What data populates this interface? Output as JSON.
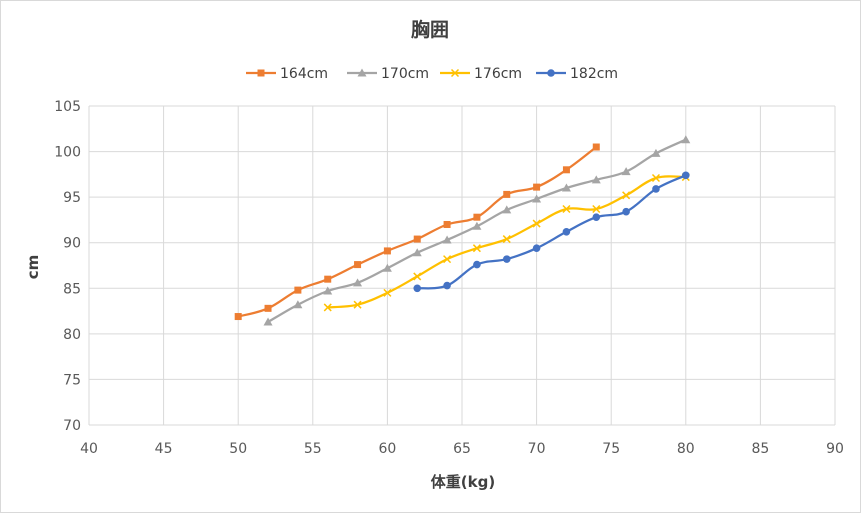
{
  "chart_data": {
    "type": "line",
    "title": "胸囲",
    "xlabel": "体重(kg)",
    "ylabel": "cm",
    "xlim": [
      40,
      90
    ],
    "ylim": [
      70,
      105
    ],
    "xticks": [
      40,
      45,
      50,
      55,
      60,
      65,
      70,
      75,
      80,
      85,
      90
    ],
    "yticks": [
      70,
      75,
      80,
      85,
      90,
      95,
      100,
      105
    ],
    "grid": true,
    "legend": "top",
    "series": [
      {
        "name": "164cm",
        "color": "#ED7D31",
        "marker": "square",
        "x": [
          50,
          52,
          54,
          56,
          58,
          60,
          62,
          64,
          66,
          68,
          70,
          72,
          74
        ],
        "y": [
          81.9,
          82.8,
          84.8,
          86.0,
          87.6,
          89.1,
          90.4,
          92.0,
          92.8,
          95.3,
          96.1,
          98.0,
          100.5
        ]
      },
      {
        "name": "170cm",
        "color": "#A5A5A5",
        "marker": "triangle",
        "x": [
          52,
          54,
          56,
          58,
          60,
          62,
          64,
          66,
          68,
          70,
          72,
          74,
          76,
          78,
          80
        ],
        "y": [
          81.3,
          83.2,
          84.7,
          85.6,
          87.2,
          88.9,
          90.3,
          91.8,
          93.6,
          94.8,
          96.0,
          96.9,
          97.8,
          99.8,
          101.3
        ]
      },
      {
        "name": "176cm",
        "color": "#FFC000",
        "marker": "x",
        "x": [
          56,
          58,
          60,
          62,
          64,
          66,
          68,
          70,
          72,
          74,
          76,
          78,
          80
        ],
        "y": [
          82.9,
          83.2,
          84.5,
          86.3,
          88.2,
          89.4,
          90.4,
          92.1,
          93.7,
          93.7,
          95.2,
          97.1,
          97.2
        ]
      },
      {
        "name": "182cm",
        "color": "#4472C4",
        "marker": "circle",
        "x": [
          62,
          64,
          66,
          68,
          70,
          72,
          74,
          76,
          78,
          80
        ],
        "y": [
          85.0,
          85.3,
          87.6,
          88.2,
          89.4,
          91.2,
          92.8,
          93.4,
          95.9,
          97.4
        ]
      }
    ]
  }
}
